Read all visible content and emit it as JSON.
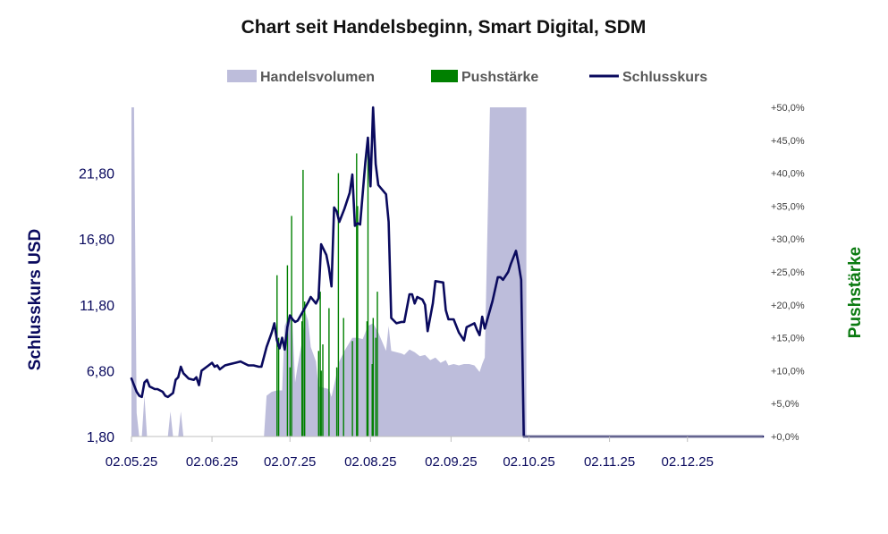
{
  "chart_data": {
    "type": "combo",
    "title": "Chart seit Handelsbeginn, Smart Digital, SDM",
    "legend": {
      "position": "top-center",
      "entries": [
        {
          "key": "volume",
          "label": "Handelsvolumen",
          "color": "#bdbddb",
          "shape": "area"
        },
        {
          "key": "push",
          "label": "Pushstärke",
          "color": "#008000",
          "shape": "bar"
        },
        {
          "key": "close",
          "label": "Schlusskurs",
          "color": "#0a0a5e",
          "shape": "line"
        }
      ]
    },
    "x_axis": {
      "type": "date",
      "range": [
        "2025-05-02",
        "2025-12-31"
      ],
      "ticks": [
        {
          "date": "2025-05-02",
          "label": "02.05.25"
        },
        {
          "date": "2025-06-02",
          "label": "02.06.25"
        },
        {
          "date": "2025-07-02",
          "label": "02.07.25"
        },
        {
          "date": "2025-08-02",
          "label": "02.08.25"
        },
        {
          "date": "2025-09-02",
          "label": "02.09.25"
        },
        {
          "date": "2025-10-02",
          "label": "02.10.25"
        },
        {
          "date": "2025-11-02",
          "label": "02.11.25"
        },
        {
          "date": "2025-12-02",
          "label": "02.12.25"
        }
      ]
    },
    "y_left": {
      "label": "Schlusskurs USD",
      "color": "#0a0a5e",
      "range": [
        1.8,
        26.8
      ],
      "ticks": [
        {
          "value": 1.8,
          "label": "1,80"
        },
        {
          "value": 6.8,
          "label": "6,80"
        },
        {
          "value": 11.8,
          "label": "11,80"
        },
        {
          "value": 16.8,
          "label": "16,80"
        },
        {
          "value": 21.8,
          "label": "21,80"
        }
      ]
    },
    "y_right": {
      "label": "Pushstärke",
      "color": "#008000",
      "range": [
        0,
        50
      ],
      "ticks": [
        {
          "value": 0,
          "label": "+0,0%"
        },
        {
          "value": 5,
          "label": "+5,0%"
        },
        {
          "value": 10,
          "label": "+10,0%"
        },
        {
          "value": 15,
          "label": "+15,0%"
        },
        {
          "value": 20,
          "label": "+20,0%"
        },
        {
          "value": 25,
          "label": "+25,0%"
        },
        {
          "value": 30,
          "label": "+30,0%"
        },
        {
          "value": 35,
          "label": "+35,0%"
        },
        {
          "value": 40,
          "label": "+40,0%"
        },
        {
          "value": 45,
          "label": "+45,0%"
        },
        {
          "value": 50,
          "label": "+50,0%"
        }
      ]
    },
    "series": {
      "close": [
        {
          "d": "2025-05-02",
          "v": 6.2
        },
        {
          "d": "2025-05-04",
          "v": 5.2
        },
        {
          "d": "2025-05-05",
          "v": 4.9
        },
        {
          "d": "2025-05-06",
          "v": 4.8
        },
        {
          "d": "2025-05-07",
          "v": 5.9
        },
        {
          "d": "2025-05-08",
          "v": 6.1
        },
        {
          "d": "2025-05-09",
          "v": 5.6
        },
        {
          "d": "2025-05-11",
          "v": 5.4
        },
        {
          "d": "2025-05-12",
          "v": 5.4
        },
        {
          "d": "2025-05-13",
          "v": 5.3
        },
        {
          "d": "2025-05-14",
          "v": 5.2
        },
        {
          "d": "2025-05-15",
          "v": 4.9
        },
        {
          "d": "2025-05-16",
          "v": 4.8
        },
        {
          "d": "2025-05-18",
          "v": 5.1
        },
        {
          "d": "2025-05-19",
          "v": 6.1
        },
        {
          "d": "2025-05-20",
          "v": 6.3
        },
        {
          "d": "2025-05-21",
          "v": 7.1
        },
        {
          "d": "2025-05-22",
          "v": 6.6
        },
        {
          "d": "2025-05-24",
          "v": 6.2
        },
        {
          "d": "2025-05-26",
          "v": 6.1
        },
        {
          "d": "2025-05-27",
          "v": 6.3
        },
        {
          "d": "2025-05-28",
          "v": 5.7
        },
        {
          "d": "2025-05-29",
          "v": 6.8
        },
        {
          "d": "2025-05-31",
          "v": 7.1
        },
        {
          "d": "2025-06-02",
          "v": 7.4
        },
        {
          "d": "2025-06-03",
          "v": 7.1
        },
        {
          "d": "2025-06-04",
          "v": 7.2
        },
        {
          "d": "2025-06-05",
          "v": 6.9
        },
        {
          "d": "2025-06-07",
          "v": 7.2
        },
        {
          "d": "2025-06-09",
          "v": 7.3
        },
        {
          "d": "2025-06-11",
          "v": 7.4
        },
        {
          "d": "2025-06-13",
          "v": 7.5
        },
        {
          "d": "2025-06-14",
          "v": 7.4
        },
        {
          "d": "2025-06-16",
          "v": 7.2
        },
        {
          "d": "2025-06-18",
          "v": 7.2
        },
        {
          "d": "2025-06-20",
          "v": 7.1
        },
        {
          "d": "2025-06-21",
          "v": 7.1
        },
        {
          "d": "2025-06-23",
          "v": 8.6
        },
        {
          "d": "2025-06-25",
          "v": 9.7
        },
        {
          "d": "2025-06-26",
          "v": 10.4
        },
        {
          "d": "2025-06-27",
          "v": 9.1
        },
        {
          "d": "2025-06-28",
          "v": 8.5
        },
        {
          "d": "2025-06-29",
          "v": 9.3
        },
        {
          "d": "2025-06-30",
          "v": 8.4
        },
        {
          "d": "2025-07-01",
          "v": 10.1
        },
        {
          "d": "2025-07-02",
          "v": 11.0
        },
        {
          "d": "2025-07-03",
          "v": 10.7
        },
        {
          "d": "2025-07-04",
          "v": 10.5
        },
        {
          "d": "2025-07-05",
          "v": 10.6
        },
        {
          "d": "2025-07-07",
          "v": 11.3
        },
        {
          "d": "2025-07-09",
          "v": 12.0
        },
        {
          "d": "2025-07-10",
          "v": 12.4
        },
        {
          "d": "2025-07-12",
          "v": 11.9
        },
        {
          "d": "2025-07-13",
          "v": 12.3
        },
        {
          "d": "2025-07-14",
          "v": 16.4
        },
        {
          "d": "2025-07-16",
          "v": 15.6
        },
        {
          "d": "2025-07-17",
          "v": 14.6
        },
        {
          "d": "2025-07-18",
          "v": 13.2
        },
        {
          "d": "2025-07-19",
          "v": 19.2
        },
        {
          "d": "2025-07-20",
          "v": 18.9
        },
        {
          "d": "2025-07-21",
          "v": 18.1
        },
        {
          "d": "2025-07-23",
          "v": 19.1
        },
        {
          "d": "2025-07-25",
          "v": 20.3
        },
        {
          "d": "2025-07-26",
          "v": 21.7
        },
        {
          "d": "2025-07-27",
          "v": 17.8
        },
        {
          "d": "2025-07-28",
          "v": 18.0
        },
        {
          "d": "2025-07-29",
          "v": 17.9
        },
        {
          "d": "2025-07-31",
          "v": 22.6
        },
        {
          "d": "2025-08-01",
          "v": 24.5
        },
        {
          "d": "2025-08-02",
          "v": 20.8
        },
        {
          "d": "2025-08-03",
          "v": 26.8
        },
        {
          "d": "2025-08-04",
          "v": 22.5
        },
        {
          "d": "2025-08-05",
          "v": 20.9
        },
        {
          "d": "2025-08-08",
          "v": 20.2
        },
        {
          "d": "2025-08-09",
          "v": 18.1
        },
        {
          "d": "2025-08-10",
          "v": 10.8
        },
        {
          "d": "2025-08-12",
          "v": 10.4
        },
        {
          "d": "2025-08-14",
          "v": 10.5
        },
        {
          "d": "2025-08-15",
          "v": 10.5
        },
        {
          "d": "2025-08-17",
          "v": 12.6
        },
        {
          "d": "2025-08-18",
          "v": 12.6
        },
        {
          "d": "2025-08-19",
          "v": 11.9
        },
        {
          "d": "2025-08-20",
          "v": 12.4
        },
        {
          "d": "2025-08-22",
          "v": 12.2
        },
        {
          "d": "2025-08-23",
          "v": 11.8
        },
        {
          "d": "2025-08-24",
          "v": 9.8
        },
        {
          "d": "2025-08-26",
          "v": 11.9
        },
        {
          "d": "2025-08-27",
          "v": 13.6
        },
        {
          "d": "2025-08-30",
          "v": 13.5
        },
        {
          "d": "2025-08-31",
          "v": 11.4
        },
        {
          "d": "2025-09-01",
          "v": 10.7
        },
        {
          "d": "2025-09-03",
          "v": 10.7
        },
        {
          "d": "2025-09-05",
          "v": 9.7
        },
        {
          "d": "2025-09-07",
          "v": 9.1
        },
        {
          "d": "2025-09-08",
          "v": 10.1
        },
        {
          "d": "2025-09-11",
          "v": 10.4
        },
        {
          "d": "2025-09-12",
          "v": 9.9
        },
        {
          "d": "2025-09-13",
          "v": 9.5
        },
        {
          "d": "2025-09-14",
          "v": 10.9
        },
        {
          "d": "2025-09-15",
          "v": 10.0
        },
        {
          "d": "2025-09-16",
          "v": 10.7
        },
        {
          "d": "2025-09-18",
          "v": 12.1
        },
        {
          "d": "2025-09-20",
          "v": 13.9
        },
        {
          "d": "2025-09-21",
          "v": 13.9
        },
        {
          "d": "2025-09-22",
          "v": 13.7
        },
        {
          "d": "2025-09-24",
          "v": 14.3
        },
        {
          "d": "2025-09-25",
          "v": 14.9
        },
        {
          "d": "2025-09-27",
          "v": 15.9
        },
        {
          "d": "2025-09-28",
          "v": 14.9
        },
        {
          "d": "2025-09-29",
          "v": 13.7
        },
        {
          "d": "2025-09-30",
          "v": 1.8
        },
        {
          "d": "2025-12-31",
          "v": 1.8
        }
      ],
      "push": [
        {
          "d": "2025-06-27",
          "v": 24.5
        },
        {
          "d": "2025-06-27",
          "v": 15.0
        },
        {
          "d": "2025-07-01",
          "v": 26.0
        },
        {
          "d": "2025-07-02",
          "v": 33.5
        },
        {
          "d": "2025-07-02",
          "v": 10.5
        },
        {
          "d": "2025-07-06",
          "v": 17.5
        },
        {
          "d": "2025-07-07",
          "v": 40.5
        },
        {
          "d": "2025-07-07",
          "v": 20.5
        },
        {
          "d": "2025-07-13",
          "v": 13.0
        },
        {
          "d": "2025-07-13",
          "v": 22.0
        },
        {
          "d": "2025-07-14",
          "v": 10.0
        },
        {
          "d": "2025-07-14",
          "v": 14.0
        },
        {
          "d": "2025-07-17",
          "v": 19.5
        },
        {
          "d": "2025-07-20",
          "v": 40.0
        },
        {
          "d": "2025-07-20",
          "v": 10.5
        },
        {
          "d": "2025-07-22",
          "v": 18.0
        },
        {
          "d": "2025-07-26",
          "v": 14.5
        },
        {
          "d": "2025-07-27",
          "v": 43.0
        },
        {
          "d": "2025-07-28",
          "v": 35.0
        },
        {
          "d": "2025-07-31",
          "v": 17.5
        },
        {
          "d": "2025-08-01",
          "v": 45.0
        },
        {
          "d": "2025-08-02",
          "v": 11.0
        },
        {
          "d": "2025-08-03",
          "v": 18.0
        },
        {
          "d": "2025-08-04",
          "v": 22.0
        },
        {
          "d": "2025-08-04",
          "v": 15.0
        }
      ],
      "volume": [
        {
          "d": "2025-05-02",
          "v": 1.8
        },
        {
          "d": "2025-05-02",
          "v": 26.8
        },
        {
          "d": "2025-05-03",
          "v": 26.8
        },
        {
          "d": "2025-05-04",
          "v": 3.6
        },
        {
          "d": "2025-05-05",
          "v": 1.8
        },
        {
          "d": "2025-05-06",
          "v": 1.8
        },
        {
          "d": "2025-05-07",
          "v": 4.9
        },
        {
          "d": "2025-05-08",
          "v": 1.8
        },
        {
          "d": "2025-05-16",
          "v": 1.8
        },
        {
          "d": "2025-05-17",
          "v": 3.7
        },
        {
          "d": "2025-05-18",
          "v": 1.8
        },
        {
          "d": "2025-05-20",
          "v": 1.8
        },
        {
          "d": "2025-05-21",
          "v": 3.7
        },
        {
          "d": "2025-05-22",
          "v": 1.8
        },
        {
          "d": "2025-06-22",
          "v": 1.8
        },
        {
          "d": "2025-06-23",
          "v": 4.9
        },
        {
          "d": "2025-06-25",
          "v": 5.2
        },
        {
          "d": "2025-06-27",
          "v": 5.3
        },
        {
          "d": "2025-06-29",
          "v": 5.3
        },
        {
          "d": "2025-06-30",
          "v": 10.2
        },
        {
          "d": "2025-07-01",
          "v": 10.7
        },
        {
          "d": "2025-07-02",
          "v": 11.0
        },
        {
          "d": "2025-07-03",
          "v": 10.3
        },
        {
          "d": "2025-07-04",
          "v": 5.9
        },
        {
          "d": "2025-07-05",
          "v": 7.2
        },
        {
          "d": "2025-07-07",
          "v": 9.4
        },
        {
          "d": "2025-07-08",
          "v": 11.2
        },
        {
          "d": "2025-07-09",
          "v": 10.6
        },
        {
          "d": "2025-07-10",
          "v": 8.6
        },
        {
          "d": "2025-07-12",
          "v": 7.5
        },
        {
          "d": "2025-07-13",
          "v": 5.6
        },
        {
          "d": "2025-07-15",
          "v": 5.5
        },
        {
          "d": "2025-07-17",
          "v": 5.4
        },
        {
          "d": "2025-07-18",
          "v": 4.8
        },
        {
          "d": "2025-07-21",
          "v": 7.5
        },
        {
          "d": "2025-07-23",
          "v": 8.3
        },
        {
          "d": "2025-07-26",
          "v": 9.3
        },
        {
          "d": "2025-07-28",
          "v": 9.3
        },
        {
          "d": "2025-07-30",
          "v": 9.2
        },
        {
          "d": "2025-08-01",
          "v": 10.2
        },
        {
          "d": "2025-08-03",
          "v": 10.4
        },
        {
          "d": "2025-08-05",
          "v": 9.7
        },
        {
          "d": "2025-08-08",
          "v": 8.3
        },
        {
          "d": "2025-08-09",
          "v": 10.2
        },
        {
          "d": "2025-08-10",
          "v": 8.3
        },
        {
          "d": "2025-08-12",
          "v": 8.2
        },
        {
          "d": "2025-08-14",
          "v": 8.1
        },
        {
          "d": "2025-08-15",
          "v": 8.0
        },
        {
          "d": "2025-08-17",
          "v": 8.4
        },
        {
          "d": "2025-08-19",
          "v": 8.2
        },
        {
          "d": "2025-08-21",
          "v": 7.9
        },
        {
          "d": "2025-08-23",
          "v": 8.0
        },
        {
          "d": "2025-08-25",
          "v": 7.6
        },
        {
          "d": "2025-08-27",
          "v": 7.8
        },
        {
          "d": "2025-08-29",
          "v": 7.4
        },
        {
          "d": "2025-08-31",
          "v": 7.6
        },
        {
          "d": "2025-09-01",
          "v": 7.2
        },
        {
          "d": "2025-09-03",
          "v": 7.3
        },
        {
          "d": "2025-09-05",
          "v": 7.2
        },
        {
          "d": "2025-09-07",
          "v": 7.3
        },
        {
          "d": "2025-09-09",
          "v": 7.3
        },
        {
          "d": "2025-09-11",
          "v": 7.2
        },
        {
          "d": "2025-09-13",
          "v": 6.7
        },
        {
          "d": "2025-09-14",
          "v": 7.3
        },
        {
          "d": "2025-09-15",
          "v": 7.8
        },
        {
          "d": "2025-09-17",
          "v": 26.8
        },
        {
          "d": "2025-09-26",
          "v": 26.8
        },
        {
          "d": "2025-10-01",
          "v": 26.8
        },
        {
          "d": "2025-10-01",
          "v": 1.8
        }
      ]
    }
  }
}
